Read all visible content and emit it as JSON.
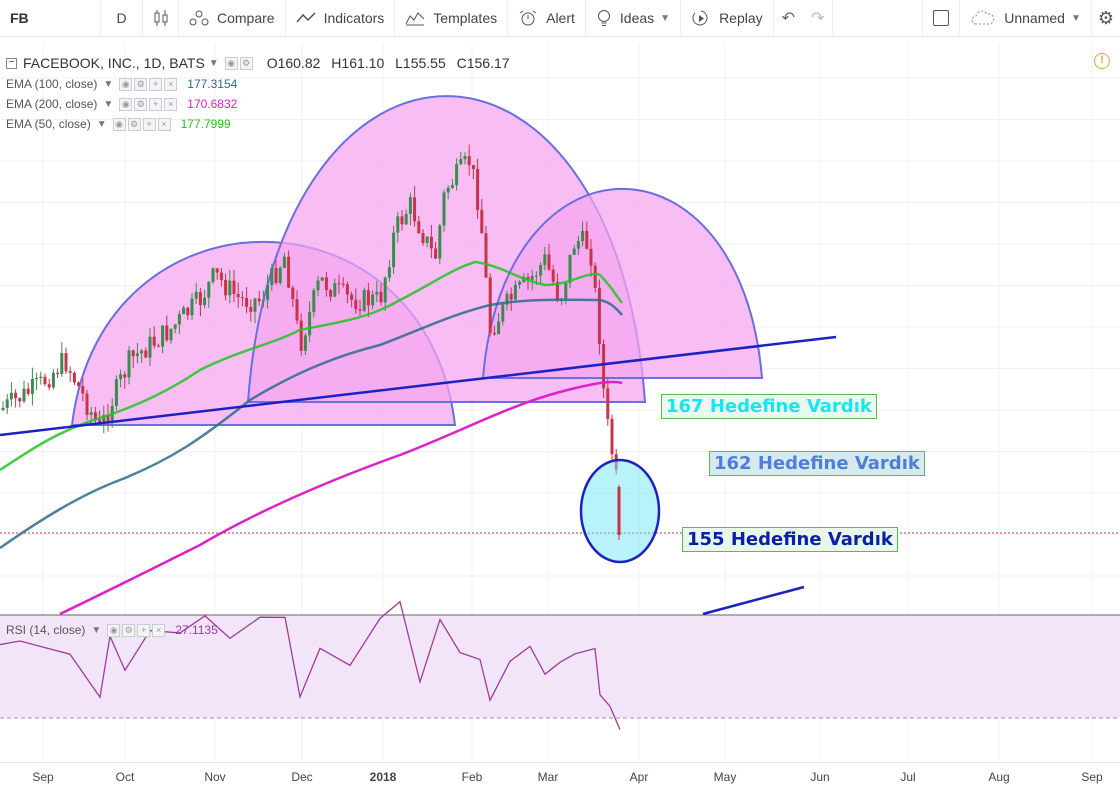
{
  "toolbar": {
    "symbol": "FB",
    "interval": "D",
    "compare": "Compare",
    "indicators": "Indicators",
    "templates": "Templates",
    "alert": "Alert",
    "ideas": "Ideas",
    "replay": "Replay",
    "layout_name": "Unnamed"
  },
  "main_legend": {
    "title": "FACEBOOK, INC., 1D, BATS",
    "open": "O160.82",
    "high": "H161.10",
    "low": "L155.55",
    "close": "C156.17"
  },
  "indicators": [
    {
      "label": "EMA (100, close)",
      "value": "177.3154",
      "color": "#2e6c8a"
    },
    {
      "label": "EMA (200, close)",
      "value": "170.6832",
      "color": "#e020c8"
    },
    {
      "label": "EMA (50, close)",
      "value": "177.7999",
      "color": "#22c422"
    }
  ],
  "rsi": {
    "label": "RSI (14, close)",
    "value": "27.1135",
    "color": "#a03aa0"
  },
  "annotations": {
    "t167": "167 Hedefine Vardık",
    "t162": "162 Hedefine Vardık",
    "t155": "155 Hedefine Vardık"
  },
  "xaxis": [
    "Sep",
    "Oct",
    "Nov",
    "Dec",
    "2018",
    "Feb",
    "Mar",
    "Apr",
    "May",
    "Jun",
    "Jul",
    "Aug",
    "Sep"
  ],
  "colors": {
    "candle_up": "#3c8a4f",
    "candle_down": "#c8334a",
    "neckline": "#1b22c4",
    "arc_fill": "#f5a5f0",
    "arc_stroke": "#6a6ee0"
  }
}
